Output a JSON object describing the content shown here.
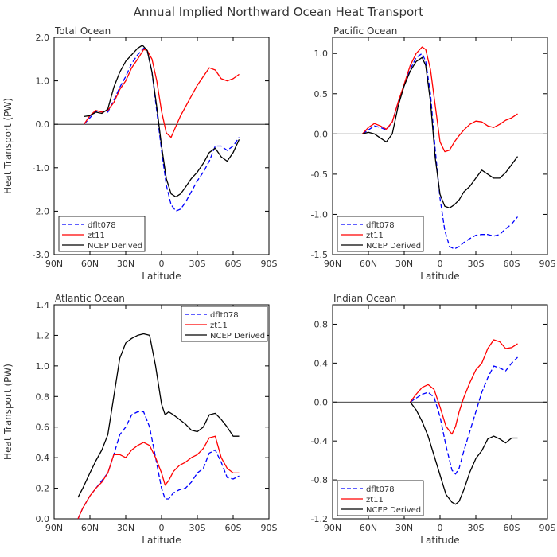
{
  "figure": {
    "title": "Annual Implied Northward Ocean Heat Transport"
  },
  "chart_data": [
    {
      "type": "line",
      "title": "Total Ocean",
      "xlabel": "Latitude",
      "ylabel": "Heat Transport (PW)",
      "xlim": [
        90,
        -90
      ],
      "ylim": [
        -3.0,
        2.0
      ],
      "x_ticks": [
        90,
        60,
        30,
        0,
        -30,
        -60,
        -90
      ],
      "x_tick_labels": [
        "90N",
        "60N",
        "30N",
        "0",
        "30S",
        "60S",
        "90S"
      ],
      "y_ticks": [
        -3.0,
        -2.0,
        -1.0,
        0.0,
        1.0,
        2.0
      ],
      "y_tick_labels": [
        "-3.0",
        "-2.0",
        "-1.0",
        "0.0",
        "1.0",
        "2.0"
      ],
      "zero_line": true,
      "legend_position": "bottom-left",
      "series": [
        {
          "name": "dflt078",
          "color": "#0000ff",
          "dash": true,
          "x": [
            65,
            60,
            55,
            50,
            45,
            40,
            35,
            30,
            25,
            20,
            15,
            12,
            8,
            4,
            0,
            -4,
            -8,
            -12,
            -16,
            -20,
            -25,
            -30,
            -35,
            -40,
            -45,
            -50,
            -55,
            -60,
            -65
          ],
          "y": [
            0.0,
            0.15,
            0.3,
            0.3,
            0.28,
            0.55,
            0.85,
            1.1,
            1.4,
            1.6,
            1.75,
            1.7,
            1.2,
            0.3,
            -0.6,
            -1.4,
            -1.85,
            -2.0,
            -1.95,
            -1.8,
            -1.55,
            -1.3,
            -1.1,
            -0.85,
            -0.5,
            -0.5,
            -0.6,
            -0.5,
            -0.3
          ]
        },
        {
          "name": "zt11",
          "color": "#ff0000",
          "dash": false,
          "x": [
            65,
            60,
            55,
            50,
            45,
            40,
            35,
            30,
            25,
            20,
            15,
            12,
            8,
            4,
            0,
            -4,
            -8,
            -12,
            -16,
            -20,
            -25,
            -30,
            -35,
            -40,
            -45,
            -50,
            -55,
            -60,
            -65
          ],
          "y": [
            0.0,
            0.2,
            0.32,
            0.28,
            0.32,
            0.5,
            0.8,
            1.0,
            1.3,
            1.5,
            1.72,
            1.7,
            1.5,
            1.0,
            0.3,
            -0.2,
            -0.3,
            -0.05,
            0.2,
            0.4,
            0.65,
            0.9,
            1.1,
            1.3,
            1.25,
            1.05,
            1.0,
            1.05,
            1.15
          ]
        },
        {
          "name": "NCEP Derived",
          "color": "#000000",
          "dash": false,
          "x": [
            65,
            60,
            55,
            50,
            45,
            40,
            35,
            30,
            25,
            20,
            16,
            12,
            8,
            4,
            0,
            -4,
            -8,
            -12,
            -16,
            -20,
            -25,
            -30,
            -35,
            -40,
            -45,
            -50,
            -55,
            -60,
            -65
          ],
          "y": [
            0.18,
            0.2,
            0.28,
            0.25,
            0.35,
            0.85,
            1.2,
            1.45,
            1.6,
            1.75,
            1.82,
            1.7,
            1.2,
            0.4,
            -0.5,
            -1.25,
            -1.6,
            -1.67,
            -1.6,
            -1.45,
            -1.25,
            -1.1,
            -0.9,
            -0.65,
            -0.55,
            -0.75,
            -0.85,
            -0.65,
            -0.35
          ]
        }
      ]
    },
    {
      "type": "line",
      "title": "Pacific Ocean",
      "xlabel": "Latitude",
      "ylabel": "",
      "xlim": [
        90,
        -90
      ],
      "ylim": [
        -1.5,
        1.2
      ],
      "x_ticks": [
        90,
        60,
        30,
        0,
        -30,
        -60,
        -90
      ],
      "x_tick_labels": [
        "90N",
        "60N",
        "30N",
        "0",
        "30S",
        "60S",
        "90S"
      ],
      "y_ticks": [
        -1.5,
        -1.0,
        -0.5,
        0.0,
        0.5,
        1.0
      ],
      "y_tick_labels": [
        "-1.5",
        "-1.0",
        "-0.5",
        "0.0",
        "0.5",
        "1.0"
      ],
      "zero_line": true,
      "legend_position": "bottom-left",
      "series": [
        {
          "name": "dflt078",
          "color": "#0000ff",
          "dash": true,
          "x": [
            65,
            60,
            55,
            50,
            45,
            40,
            35,
            30,
            25,
            20,
            15,
            12,
            8,
            4,
            0,
            -4,
            -8,
            -12,
            -16,
            -20,
            -25,
            -30,
            -35,
            -40,
            -45,
            -50,
            -55,
            -60,
            -65
          ],
          "y": [
            0.0,
            0.05,
            0.1,
            0.08,
            0.05,
            0.15,
            0.4,
            0.6,
            0.8,
            0.95,
            1.0,
            0.9,
            0.5,
            -0.2,
            -0.8,
            -1.2,
            -1.4,
            -1.43,
            -1.4,
            -1.35,
            -1.3,
            -1.26,
            -1.25,
            -1.25,
            -1.27,
            -1.25,
            -1.18,
            -1.12,
            -1.03
          ]
        },
        {
          "name": "zt11",
          "color": "#ff0000",
          "dash": false,
          "x": [
            65,
            60,
            55,
            50,
            45,
            40,
            35,
            30,
            25,
            20,
            15,
            12,
            8,
            4,
            0,
            -4,
            -8,
            -12,
            -16,
            -20,
            -25,
            -30,
            -35,
            -40,
            -45,
            -50,
            -55,
            -60,
            -65
          ],
          "y": [
            0.0,
            0.08,
            0.13,
            0.1,
            0.06,
            0.15,
            0.4,
            0.62,
            0.85,
            1.0,
            1.08,
            1.05,
            0.8,
            0.35,
            -0.1,
            -0.22,
            -0.2,
            -0.1,
            -0.02,
            0.05,
            0.12,
            0.16,
            0.15,
            0.1,
            0.08,
            0.12,
            0.17,
            0.2,
            0.25
          ]
        },
        {
          "name": "NCEP Derived",
          "color": "#000000",
          "dash": false,
          "x": [
            65,
            60,
            55,
            50,
            45,
            40,
            35,
            30,
            25,
            20,
            15,
            12,
            8,
            4,
            0,
            -4,
            -8,
            -12,
            -16,
            -20,
            -25,
            -30,
            -35,
            -40,
            -45,
            -50,
            -55,
            -60,
            -65
          ],
          "y": [
            0.0,
            0.02,
            0.0,
            -0.05,
            -0.1,
            0.0,
            0.35,
            0.6,
            0.78,
            0.9,
            0.95,
            0.85,
            0.4,
            -0.3,
            -0.75,
            -0.9,
            -0.92,
            -0.88,
            -0.82,
            -0.72,
            -0.65,
            -0.55,
            -0.45,
            -0.5,
            -0.55,
            -0.55,
            -0.48,
            -0.38,
            -0.28
          ]
        }
      ]
    },
    {
      "type": "line",
      "title": "Atlantic Ocean",
      "xlabel": "Latitude",
      "ylabel": "Heat Transport (PW)",
      "xlim": [
        90,
        -90
      ],
      "ylim": [
        0.0,
        1.4
      ],
      "x_ticks": [
        90,
        60,
        30,
        0,
        -30,
        -60,
        -90
      ],
      "x_tick_labels": [
        "90N",
        "60N",
        "30N",
        "0",
        "30S",
        "60S",
        "90S"
      ],
      "y_ticks": [
        0.0,
        0.2,
        0.4,
        0.6,
        0.8,
        1.0,
        1.2,
        1.4
      ],
      "y_tick_labels": [
        "0.0",
        "0.2",
        "0.4",
        "0.6",
        "0.8",
        "1.0",
        "1.2",
        "1.4"
      ],
      "zero_line": false,
      "legend_position": "top-right",
      "series": [
        {
          "name": "dflt078",
          "color": "#0000ff",
          "dash": true,
          "x": [
            70,
            66,
            60,
            55,
            50,
            45,
            40,
            35,
            30,
            25,
            20,
            15,
            10,
            5,
            0,
            -3,
            -6,
            -10,
            -15,
            -20,
            -25,
            -30,
            -35,
            -40,
            -45,
            -50,
            -55,
            -60,
            -65
          ],
          "y": [
            0.0,
            0.07,
            0.15,
            0.2,
            0.25,
            0.3,
            0.42,
            0.55,
            0.6,
            0.68,
            0.7,
            0.7,
            0.6,
            0.4,
            0.2,
            0.13,
            0.13,
            0.17,
            0.19,
            0.2,
            0.24,
            0.3,
            0.33,
            0.43,
            0.45,
            0.37,
            0.27,
            0.26,
            0.28
          ]
        },
        {
          "name": "zt11",
          "color": "#ff0000",
          "dash": false,
          "x": [
            70,
            66,
            60,
            55,
            50,
            45,
            40,
            35,
            30,
            25,
            20,
            15,
            10,
            5,
            0,
            -3,
            -6,
            -10,
            -15,
            -20,
            -25,
            -30,
            -35,
            -40,
            -45,
            -50,
            -55,
            -60,
            -65
          ],
          "y": [
            0.0,
            0.07,
            0.15,
            0.2,
            0.24,
            0.3,
            0.42,
            0.42,
            0.4,
            0.45,
            0.48,
            0.5,
            0.48,
            0.4,
            0.3,
            0.22,
            0.25,
            0.31,
            0.35,
            0.37,
            0.4,
            0.42,
            0.46,
            0.53,
            0.54,
            0.4,
            0.33,
            0.3,
            0.3
          ]
        },
        {
          "name": "NCEP Derived",
          "color": "#000000",
          "dash": false,
          "x": [
            70,
            66,
            60,
            55,
            50,
            45,
            40,
            35,
            30,
            25,
            20,
            15,
            10,
            5,
            0,
            -3,
            -6,
            -10,
            -15,
            -20,
            -25,
            -30,
            -35,
            -40,
            -45,
            -50,
            -55,
            -60,
            -65
          ],
          "y": [
            0.14,
            0.2,
            0.3,
            0.38,
            0.45,
            0.55,
            0.8,
            1.05,
            1.15,
            1.18,
            1.2,
            1.21,
            1.2,
            1.0,
            0.75,
            0.68,
            0.7,
            0.68,
            0.65,
            0.62,
            0.58,
            0.57,
            0.6,
            0.68,
            0.69,
            0.65,
            0.6,
            0.54,
            0.54
          ]
        }
      ]
    },
    {
      "type": "line",
      "title": "Indian Ocean",
      "xlabel": "Latitude",
      "ylabel": "",
      "xlim": [
        90,
        -90
      ],
      "ylim": [
        -1.2,
        1.0
      ],
      "x_ticks": [
        90,
        60,
        30,
        0,
        -30,
        -60,
        -90
      ],
      "x_tick_labels": [
        "90N",
        "60N",
        "30N",
        "0",
        "30S",
        "60S",
        "90S"
      ],
      "y_ticks": [
        -1.2,
        -0.8,
        -0.4,
        0.0,
        0.4,
        0.8
      ],
      "y_tick_labels": [
        "-1.2",
        "-0.8",
        "-0.4",
        "0.0",
        "0.4",
        "0.8"
      ],
      "zero_line": true,
      "legend_position": "bottom-left",
      "series": [
        {
          "name": "dflt078",
          "color": "#0000ff",
          "dash": true,
          "x": [
            25,
            20,
            15,
            10,
            5,
            0,
            -5,
            -10,
            -13,
            -16,
            -20,
            -25,
            -30,
            -35,
            -40,
            -45,
            -50,
            -55,
            -60,
            -65
          ],
          "y": [
            0.0,
            0.04,
            0.08,
            0.1,
            0.05,
            -0.15,
            -0.45,
            -0.7,
            -0.74,
            -0.68,
            -0.5,
            -0.3,
            -0.1,
            0.1,
            0.25,
            0.37,
            0.35,
            0.32,
            0.4,
            0.46
          ]
        },
        {
          "name": "zt11",
          "color": "#ff0000",
          "dash": false,
          "x": [
            25,
            20,
            15,
            10,
            5,
            0,
            -5,
            -10,
            -13,
            -16,
            -20,
            -25,
            -30,
            -35,
            -40,
            -45,
            -50,
            -55,
            -60,
            -65
          ],
          "y": [
            0.0,
            0.08,
            0.15,
            0.18,
            0.13,
            -0.05,
            -0.25,
            -0.33,
            -0.25,
            -0.1,
            0.05,
            0.2,
            0.33,
            0.4,
            0.55,
            0.64,
            0.62,
            0.55,
            0.56,
            0.6
          ]
        },
        {
          "name": "NCEP Derived",
          "color": "#000000",
          "dash": false,
          "x": [
            25,
            20,
            15,
            10,
            5,
            0,
            -5,
            -10,
            -13,
            -16,
            -20,
            -25,
            -30,
            -35,
            -40,
            -45,
            -50,
            -55,
            -60,
            -65
          ],
          "y": [
            0.0,
            -0.08,
            -0.2,
            -0.35,
            -0.55,
            -0.75,
            -0.95,
            -1.03,
            -1.05,
            -1.02,
            -0.9,
            -0.72,
            -0.58,
            -0.5,
            -0.38,
            -0.35,
            -0.38,
            -0.42,
            -0.37,
            -0.37
          ]
        }
      ]
    }
  ]
}
